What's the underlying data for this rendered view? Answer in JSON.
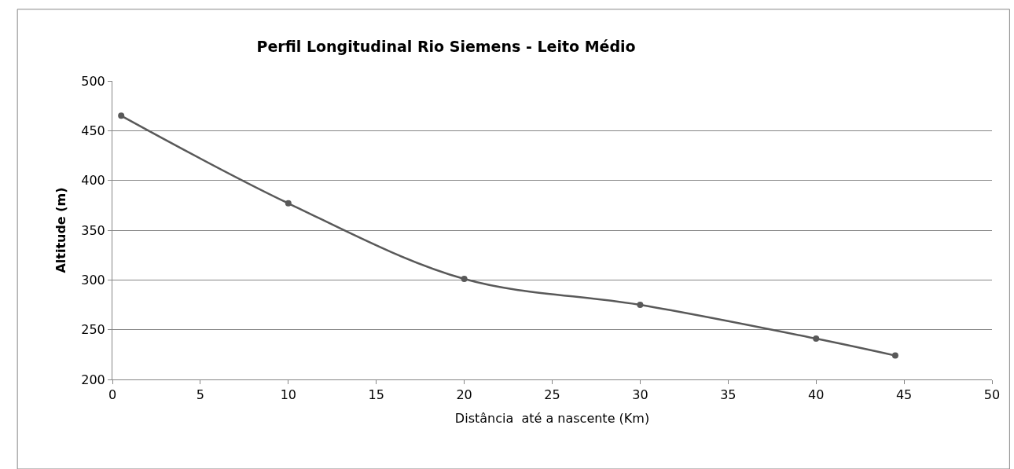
{
  "chart_data": {
    "type": "line",
    "title": "Perfil Longitudinal Rio Siemens - Leito Médio",
    "xlabel": "Distância  até a nascente (Km)",
    "ylabel": "Altitude (m)",
    "x": [
      0.5,
      10,
      20,
      30,
      40,
      44.5
    ],
    "series": [
      {
        "color": "#595959",
        "values": [
          465,
          377,
          301,
          275,
          241,
          224
        ]
      }
    ],
    "xlim": [
      0,
      50
    ],
    "xticks": [
      0,
      5,
      10,
      15,
      20,
      25,
      30,
      35,
      40,
      45,
      50
    ],
    "ylim": [
      200,
      500
    ],
    "yticks": [
      200,
      250,
      300,
      350,
      400,
      450,
      500
    ],
    "grid": "y",
    "marker": "circle",
    "line_style": "solid"
  }
}
